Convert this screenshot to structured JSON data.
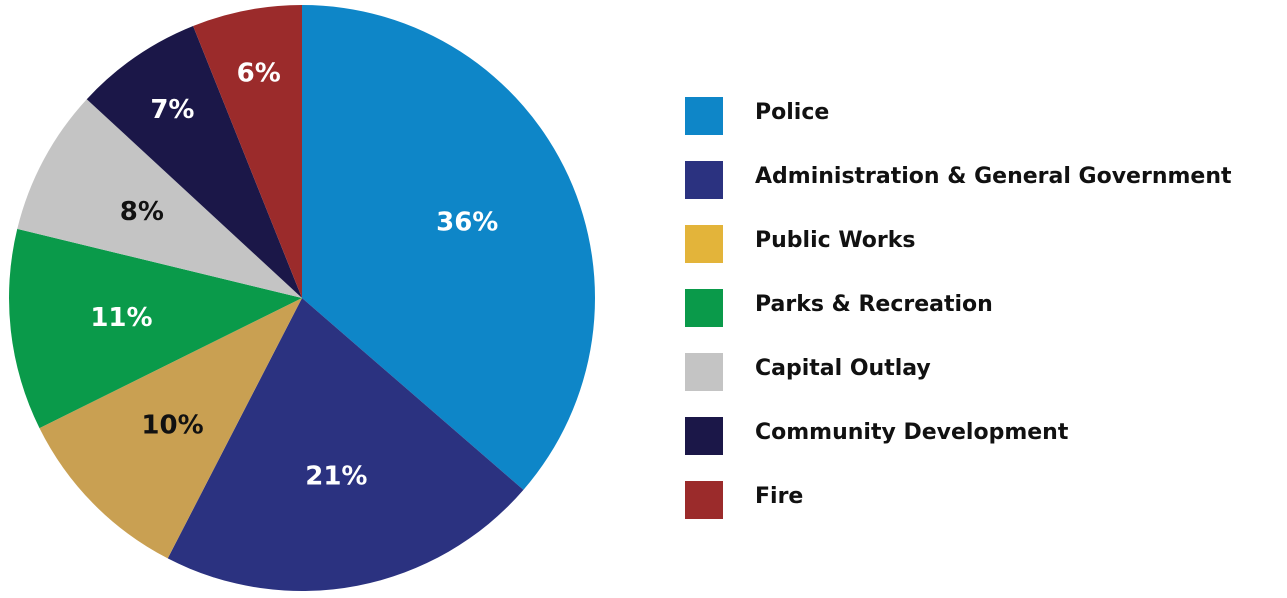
{
  "chart_data": {
    "type": "pie",
    "title": "",
    "legend_position": "right",
    "slices": [
      {
        "label": "Police",
        "value": 36,
        "display": "36%",
        "color": "#0E86C8",
        "label_color": "#ffffff"
      },
      {
        "label": "Administration & General Government",
        "value": 21,
        "display": "21%",
        "color": "#2B3280",
        "label_color": "#ffffff"
      },
      {
        "label": "Public Works",
        "value": 10,
        "display": "10%",
        "color": "#C9A052",
        "label_color": "#111111"
      },
      {
        "label": "Parks & Recreation",
        "value": 11,
        "display": "11%",
        "color": "#0A9A4A",
        "label_color": "#ffffff"
      },
      {
        "label": "Capital Outlay",
        "value": 8,
        "display": "8%",
        "color": "#C4C4C4",
        "label_color": "#111111"
      },
      {
        "label": "Community Development",
        "value": 7,
        "display": "7%",
        "color": "#1B1748",
        "label_color": "#ffffff"
      },
      {
        "label": "Fire",
        "value": 6,
        "display": "6%",
        "color": "#9B2B2B",
        "label_color": "#ffffff"
      }
    ]
  },
  "legend": {
    "items": [
      {
        "label": "Police",
        "color": "#0E86C8"
      },
      {
        "label": "Administration & General Government",
        "color": "#2B3280"
      },
      {
        "label": "Public Works",
        "color": "#E3B43A"
      },
      {
        "label": "Parks & Recreation",
        "color": "#0A9A4A"
      },
      {
        "label": "Capital Outlay",
        "color": "#C4C4C4"
      },
      {
        "label": "Community Development",
        "color": "#1B1748"
      },
      {
        "label": "Fire",
        "color": "#9B2B2B"
      }
    ]
  }
}
